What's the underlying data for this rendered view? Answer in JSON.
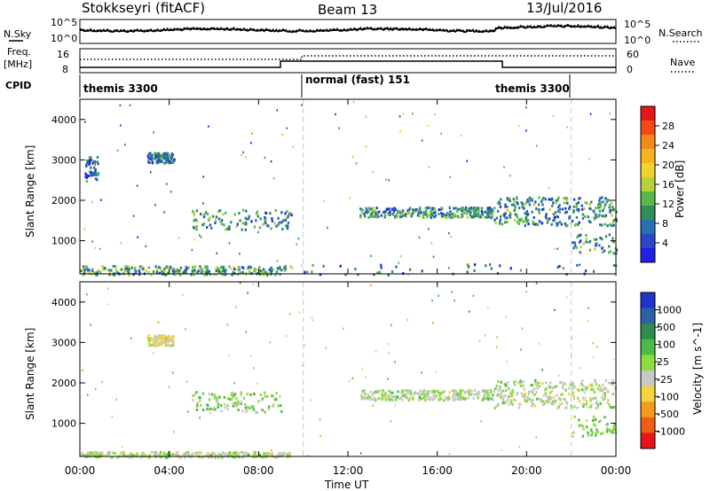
{
  "header": {
    "station": "Stokkseyri (fitACF)",
    "beam": "Beam 13",
    "date": "13/Jul/2016"
  },
  "left_labels": {
    "nsky": "N.Sky",
    "freq": "Freq.",
    "freq_unit": "[MHz]",
    "cpid": "CPID"
  },
  "right_labels": {
    "nsearch": "N.Search",
    "nave": "Nave"
  },
  "noise_panel": {
    "y_top_label": "10^5",
    "y_bottom_label": "10^0",
    "right_top_label": "10^5",
    "right_bottom_label": "10^0"
  },
  "freq_panel": {
    "left_ticks": [
      "16",
      "8"
    ],
    "right_ticks": [
      "60",
      "0"
    ]
  },
  "cpid_panel": {
    "segments": [
      {
        "label": "themis 3300",
        "start_hour": 0,
        "end_hour": 10
      },
      {
        "label": "normal (fast) 151",
        "start_hour": 10,
        "end_hour": 22
      },
      {
        "label": "themis 3300",
        "start_hour": 22,
        "end_hour": 24
      }
    ]
  },
  "axes": {
    "ylabel": "Slant Range [km]",
    "xlabel": "Time UT",
    "x_ticks": [
      "00:00",
      "04:00",
      "08:00",
      "12:00",
      "16:00",
      "20:00",
      "00:00"
    ],
    "x_tick_hours": [
      0,
      4,
      8,
      12,
      16,
      20,
      24
    ],
    "y_ticks": [
      1000,
      2000,
      3000,
      4000
    ],
    "yrange_km": [
      180,
      4500
    ],
    "xrange_hours": [
      0,
      24
    ],
    "mode_change_hours": [
      10,
      22
    ]
  },
  "power_colorbar": {
    "label": "Power [dB]",
    "ticks": [
      "28",
      "24",
      "20",
      "16",
      "12",
      "8",
      "4"
    ],
    "colors": [
      "#e8161b",
      "#f04b12",
      "#f48a1a",
      "#f6b51f",
      "#f2d22d",
      "#b7d13a",
      "#59b947",
      "#2e8f57",
      "#2a6fae",
      "#2848c8",
      "#1f20e8"
    ]
  },
  "velocity_colorbar": {
    "label": "Velocity [m s^-1]",
    "ticks": [
      "1000",
      "500",
      "100",
      "25",
      "-25",
      "-100",
      "-500",
      "-1000"
    ],
    "colors": [
      "#2233cc",
      "#2a63a8",
      "#2f8c4e",
      "#4cb94b",
      "#8bdc3e",
      "#c8c8c8",
      "#f5d33a",
      "#f49a1f",
      "#f05d14",
      "#e8141a"
    ]
  },
  "chart_data": [
    {
      "type": "heatmap",
      "title": "Power",
      "xlabel": "Time UT",
      "ylabel": "Slant Range [km]",
      "xlim_hours": [
        0,
        24
      ],
      "ylim_km": [
        180,
        4500
      ],
      "colorbar_range_dB": [
        0,
        30
      ],
      "scatter_regions": [
        {
          "t_start": 0,
          "t_end": 9.5,
          "r_start": 180,
          "r_end": 400,
          "value": 10,
          "density": "high"
        },
        {
          "t_start": 3.0,
          "t_end": 4.2,
          "r_start": 2950,
          "r_end": 3200,
          "value": 6,
          "density": "medium"
        },
        {
          "t_start": 0.2,
          "t_end": 0.8,
          "r_start": 2500,
          "r_end": 3100,
          "value": 6,
          "density": "low"
        },
        {
          "t_start": 5.0,
          "t_end": 9.5,
          "r_start": 1300,
          "r_end": 1800,
          "value": 8,
          "density": "medium"
        },
        {
          "t_start": 12.5,
          "t_end": 18.5,
          "r_start": 1600,
          "r_end": 1850,
          "value": 8,
          "density": "high"
        },
        {
          "t_start": 18.5,
          "t_end": 24,
          "r_start": 1400,
          "r_end": 2100,
          "value": 8,
          "density": "high"
        },
        {
          "t_start": 10,
          "t_end": 24,
          "r_start": 180,
          "r_end": 450,
          "value": 6,
          "density": "low"
        },
        {
          "t_start": 22,
          "t_end": 24,
          "r_start": 700,
          "r_end": 1200,
          "value": 8,
          "density": "low"
        }
      ]
    },
    {
      "type": "heatmap",
      "title": "Velocity",
      "xlabel": "Time UT",
      "ylabel": "Slant Range [km]",
      "xlim_hours": [
        0,
        24
      ],
      "ylim_km": [
        180,
        4500
      ],
      "colorbar_range_ms": [
        -1000,
        1000
      ],
      "scatter_regions": [
        {
          "t_start": 0,
          "t_end": 9.5,
          "r_start": 180,
          "r_end": 320,
          "value": 0,
          "density": "high"
        },
        {
          "t_start": 3.0,
          "t_end": 4.2,
          "r_start": 2950,
          "r_end": 3200,
          "value": -200,
          "density": "medium"
        },
        {
          "t_start": 5.0,
          "t_end": 9.0,
          "r_start": 1300,
          "r_end": 1800,
          "value": 150,
          "density": "medium"
        },
        {
          "t_start": 12.5,
          "t_end": 18.5,
          "r_start": 1600,
          "r_end": 1850,
          "value": 0,
          "density": "high"
        },
        {
          "t_start": 18.5,
          "t_end": 24,
          "r_start": 1400,
          "r_end": 2100,
          "value": 0,
          "density": "high"
        },
        {
          "t_start": 22,
          "t_end": 24,
          "r_start": 700,
          "r_end": 1200,
          "value": 200,
          "density": "low"
        }
      ]
    }
  ]
}
